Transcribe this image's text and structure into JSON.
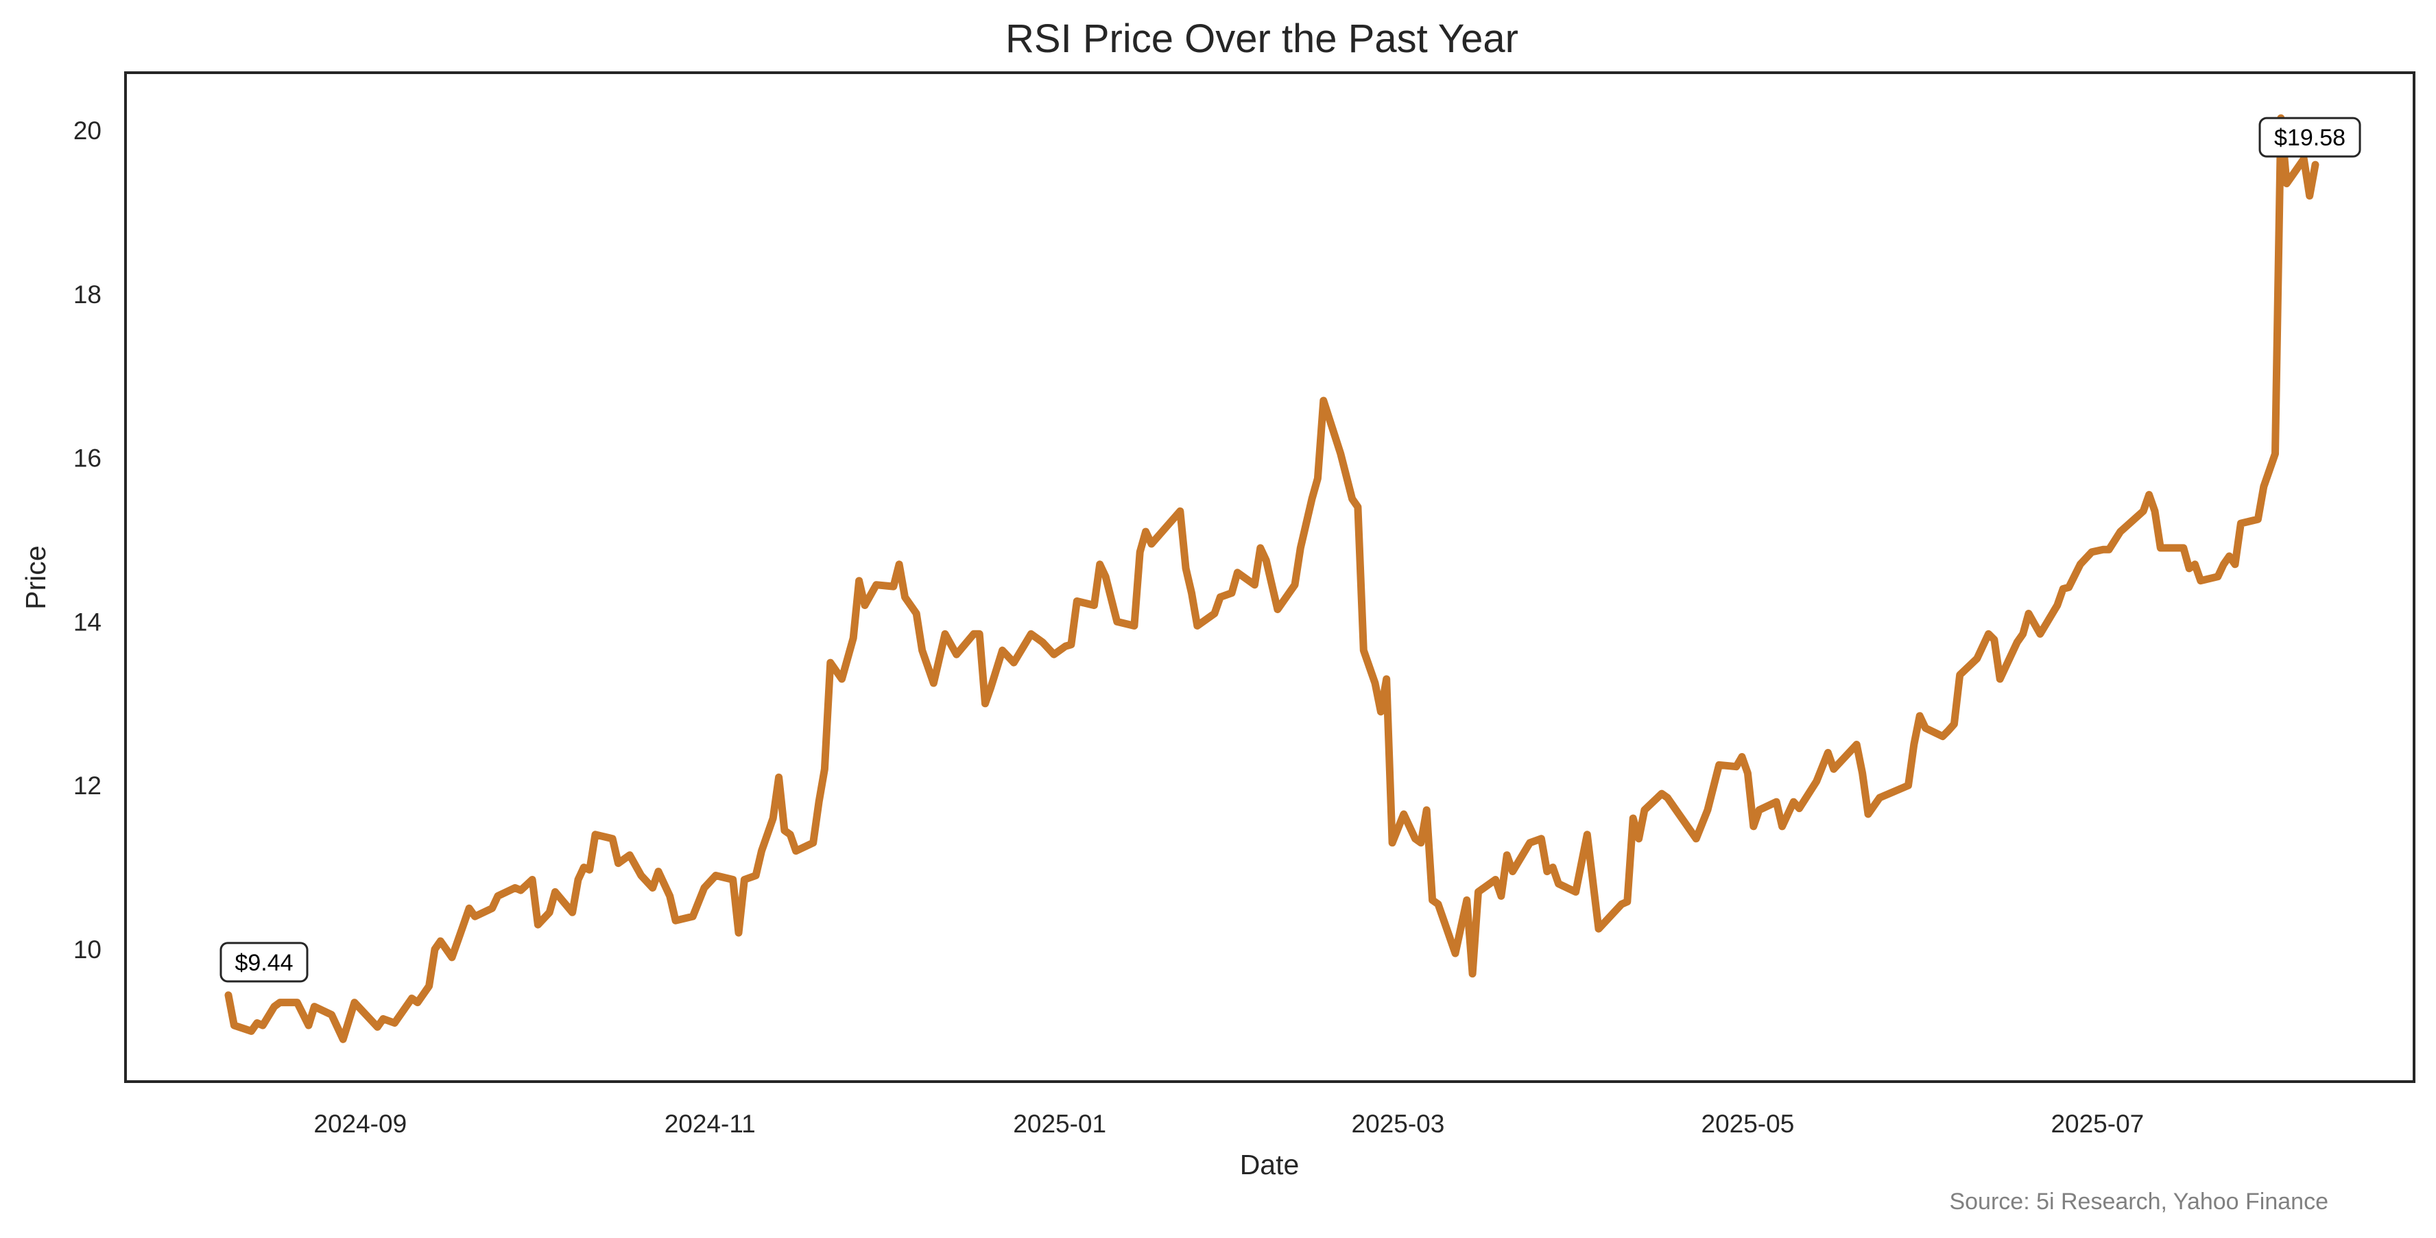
{
  "chart_data": {
    "type": "line",
    "title": "RSI Price Over the Past Year",
    "xlabel": "Date",
    "ylabel": "Price",
    "start_date": "2024-08-09",
    "x_unit": "days since start_date",
    "ylim": [
      8.4,
      20.7
    ],
    "grid": false,
    "line_color": "#c8782a",
    "x_ticks": [
      {
        "label": "2024-09",
        "day": 23
      },
      {
        "label": "2024-11",
        "day": 84
      },
      {
        "label": "2025-01",
        "day": 145
      },
      {
        "label": "2025-03",
        "day": 204
      },
      {
        "label": "2025-05",
        "day": 265
      },
      {
        "label": "2025-07",
        "day": 326
      }
    ],
    "y_ticks": [
      10,
      12,
      14,
      16,
      18,
      20
    ],
    "day_offsets": [
      0,
      1,
      4,
      5,
      6,
      8,
      9,
      12,
      14,
      15,
      18,
      20,
      22,
      26,
      27,
      29,
      32,
      33,
      35,
      36,
      37,
      39,
      41,
      42,
      43,
      46,
      47,
      50,
      51,
      53,
      54,
      56,
      57,
      60,
      61,
      62,
      63,
      64,
      67,
      68,
      70,
      72,
      74,
      75,
      77,
      78,
      81,
      83,
      85,
      88,
      89,
      90,
      92,
      93,
      95,
      96,
      97,
      98,
      99,
      102,
      103,
      104,
      105,
      107,
      109,
      110,
      111,
      113,
      116,
      117,
      118,
      120,
      121,
      123,
      125,
      127,
      130,
      131,
      132,
      133,
      135,
      137,
      140,
      142,
      144,
      146,
      147,
      148,
      151,
      152,
      153,
      155,
      158,
      159,
      160,
      161,
      166,
      167,
      168,
      169,
      172,
      173,
      175,
      176,
      179,
      180,
      181,
      183,
      186,
      187,
      189,
      190,
      191,
      194,
      196,
      197,
      198,
      200,
      201,
      202,
      203,
      205,
      207,
      208,
      209,
      210,
      211,
      214,
      216,
      217,
      218,
      221,
      222,
      223,
      224,
      227,
      229,
      230,
      231,
      232,
      235,
      237,
      239,
      243,
      244,
      245,
      246,
      247,
      250,
      251,
      253,
      256,
      258,
      260,
      263,
      264,
      265,
      266,
      267,
      270,
      271,
      273,
      274,
      277,
      279,
      280,
      284,
      285,
      286,
      288,
      293,
      294,
      295,
      296,
      299,
      300,
      301,
      302,
      305,
      307,
      308,
      309,
      312,
      313,
      314,
      316,
      319,
      320,
      321,
      323,
      325,
      327,
      328,
      330,
      334,
      335,
      336,
      337,
      341,
      342,
      343,
      344,
      347,
      348,
      349,
      350,
      351,
      354,
      355,
      357,
      358,
      359,
      360,
      362,
      363,
      364
    ],
    "values": [
      9.44,
      9.07,
      9.0,
      9.1,
      9.07,
      9.3,
      9.35,
      9.35,
      9.07,
      9.3,
      9.2,
      8.9,
      9.35,
      9.05,
      9.15,
      9.1,
      9.4,
      9.35,
      9.55,
      10.0,
      10.1,
      9.9,
      10.3,
      10.5,
      10.4,
      10.5,
      10.65,
      10.75,
      10.72,
      10.85,
      10.3,
      10.45,
      10.7,
      10.45,
      10.85,
      11.0,
      10.97,
      11.4,
      11.35,
      11.05,
      11.15,
      10.9,
      10.75,
      10.95,
      10.65,
      10.35,
      10.4,
      10.75,
      10.9,
      10.85,
      10.2,
      10.85,
      10.9,
      11.2,
      11.6,
      12.1,
      11.45,
      11.4,
      11.2,
      11.3,
      11.8,
      12.2,
      13.5,
      13.3,
      13.8,
      14.5,
      14.2,
      14.45,
      14.43,
      14.7,
      14.3,
      14.1,
      13.65,
      13.25,
      13.85,
      13.6,
      13.85,
      13.85,
      13.0,
      13.2,
      13.65,
      13.5,
      13.85,
      13.75,
      13.6,
      13.7,
      13.72,
      14.25,
      14.2,
      14.7,
      14.55,
      14.0,
      13.95,
      14.85,
      15.1,
      14.95,
      15.35,
      14.65,
      14.35,
      13.95,
      14.1,
      14.3,
      14.35,
      14.6,
      14.45,
      14.9,
      14.75,
      14.15,
      14.45,
      14.9,
      15.5,
      15.75,
      16.7,
      16.05,
      15.5,
      15.4,
      13.65,
      13.25,
      12.9,
      13.3,
      11.3,
      11.65,
      11.35,
      11.3,
      11.7,
      10.6,
      10.55,
      9.95,
      10.6,
      9.7,
      10.7,
      10.85,
      10.65,
      11.15,
      10.95,
      11.3,
      11.35,
      10.95,
      11.0,
      10.8,
      10.7,
      11.4,
      10.25,
      10.55,
      10.58,
      11.6,
      11.35,
      11.7,
      11.9,
      11.85,
      11.65,
      11.35,
      11.7,
      12.25,
      12.23,
      12.35,
      12.15,
      11.5,
      11.7,
      11.8,
      11.5,
      11.8,
      11.72,
      12.05,
      12.4,
      12.2,
      12.5,
      12.15,
      11.65,
      11.85,
      12.0,
      12.5,
      12.85,
      12.7,
      12.6,
      12.67,
      12.75,
      13.35,
      13.55,
      13.85,
      13.78,
      13.3,
      13.75,
      13.85,
      14.1,
      13.85,
      14.2,
      14.4,
      14.42,
      14.7,
      14.85,
      14.88,
      14.88,
      15.1,
      15.35,
      15.55,
      15.35,
      14.9,
      14.9,
      14.65,
      14.7,
      14.5,
      14.55,
      14.7,
      14.8,
      14.7,
      15.2,
      15.25,
      15.65,
      16.05,
      20.15,
      19.35,
      19.45,
      19.65,
      19.2,
      19.58
    ],
    "annotations": [
      {
        "text": "$9.44",
        "day": 0,
        "value": 9.44
      },
      {
        "text": "$19.58",
        "day": 364,
        "value": 19.58
      }
    ],
    "source_note": "Source: 5i Research, Yahoo Finance"
  }
}
